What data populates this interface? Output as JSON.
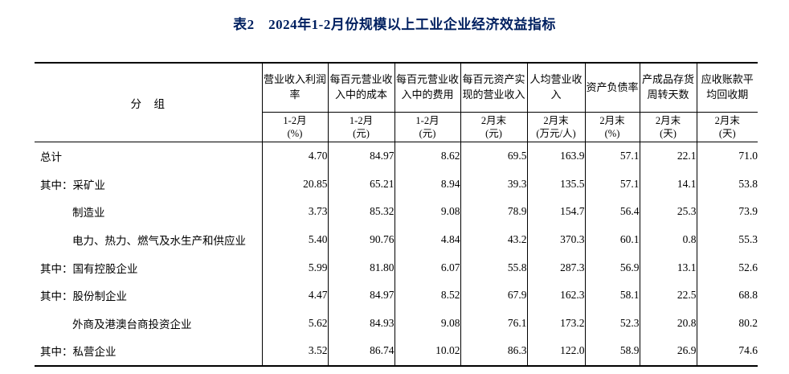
{
  "title": "表2　2024年1-2月份规模以上工业企业经济效益指标",
  "title_color": "#002060",
  "table": {
    "group_header": "分　组",
    "columns": [
      {
        "label": "营业收入利润率",
        "period": "1-2月",
        "unit": "(%)"
      },
      {
        "label": "每百元营业收入中的成本",
        "period": "1-2月",
        "unit": "(元)"
      },
      {
        "label": "每百元营业收入中的费用",
        "period": "1-2月",
        "unit": "(元)"
      },
      {
        "label": "每百元资产实现的营业收入",
        "period": "2月末",
        "unit": "(元)"
      },
      {
        "label": "人均营业收入",
        "period": "2月末",
        "unit": "(万元/人)"
      },
      {
        "label": "资产负债率",
        "period": "2月末",
        "unit": "(%)"
      },
      {
        "label": "产成品存货周转天数",
        "period": "2月末",
        "unit": "(天)"
      },
      {
        "label": "应收账款平均回收期",
        "period": "2月末",
        "unit": "(天)"
      }
    ],
    "rows": [
      {
        "label": "总计",
        "indent": 0,
        "values": [
          "4.70",
          "84.97",
          "8.62",
          "69.5",
          "163.9",
          "57.1",
          "22.1",
          "71.0"
        ]
      },
      {
        "label": "其中：采矿业",
        "indent": 0,
        "values": [
          "20.85",
          "65.21",
          "8.94",
          "39.3",
          "135.5",
          "57.1",
          "14.1",
          "53.8"
        ]
      },
      {
        "label": "制造业",
        "indent": 1,
        "values": [
          "3.73",
          "85.32",
          "9.08",
          "78.9",
          "154.7",
          "56.4",
          "25.3",
          "73.9"
        ]
      },
      {
        "label": "电力、热力、燃气及水生产和供应业",
        "indent": 1,
        "values": [
          "5.40",
          "90.76",
          "4.84",
          "43.2",
          "370.3",
          "60.1",
          "0.8",
          "55.3"
        ]
      },
      {
        "label": "其中：国有控股企业",
        "indent": 0,
        "values": [
          "5.99",
          "81.80",
          "6.07",
          "55.8",
          "287.3",
          "56.9",
          "13.1",
          "52.6"
        ]
      },
      {
        "label": "其中：股份制企业",
        "indent": 0,
        "values": [
          "4.47",
          "84.97",
          "8.52",
          "67.9",
          "162.3",
          "58.1",
          "22.5",
          "68.8"
        ]
      },
      {
        "label": "外商及港澳台商投资企业",
        "indent": 1,
        "values": [
          "5.62",
          "84.93",
          "9.08",
          "76.1",
          "173.2",
          "52.3",
          "20.8",
          "80.2"
        ]
      },
      {
        "label": "其中：私营企业",
        "indent": 0,
        "values": [
          "3.52",
          "86.74",
          "10.02",
          "86.3",
          "122.0",
          "58.9",
          "26.9",
          "74.6"
        ]
      }
    ]
  }
}
